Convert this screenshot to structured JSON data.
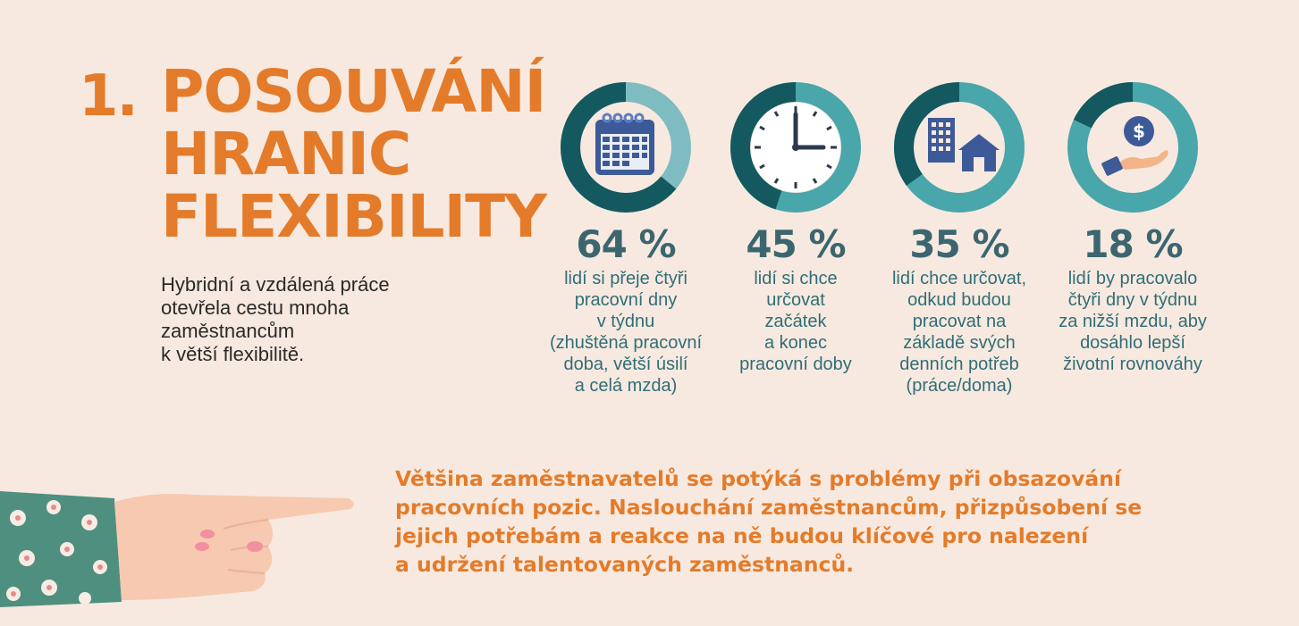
{
  "heading": {
    "number": "1.",
    "title_lines": [
      "POSOUVÁNÍ",
      "HRANIC",
      "FLEXIBILITY"
    ]
  },
  "intro_lines": [
    "Hybridní a vzdálená práce",
    "otevřela cestu mnoha",
    "zaměstnancům",
    "k větší flexibilitě."
  ],
  "chart_data": {
    "type": "pie",
    "unit": "%",
    "values": [
      64,
      45,
      35,
      18
    ],
    "labels": [
      "64 %",
      "45 %",
      "35 %",
      "18 %"
    ],
    "descriptions": [
      [
        "lidí si přeje čtyři",
        "pracovní dny",
        "v týdnu",
        "(zhuštěná pracovní",
        "doba, větší úsilí",
        "a celá mzda)"
      ],
      [
        "lidí si chce",
        "určovat",
        "začátek",
        "a konec",
        "pracovní doby"
      ],
      [
        "lidí chce určovat,",
        "odkud budou",
        "pracovat na",
        "základě svých",
        "denních potřeb",
        "(práce/doma)"
      ],
      [
        "lidí by pracovalo",
        "čtyři dny v týdnu",
        "za nižší mzdu, aby",
        "dosáhlo lepší",
        "životní rovnováhy"
      ]
    ],
    "icons": [
      "calendar-icon",
      "clock-icon",
      "buildings-icon",
      "money-hand-icon"
    ]
  },
  "callout_lines": [
    "Většina zaměstnavatelů se potýká s problémy při obsazování",
    "pracovních pozic. Naslouchání zaměstnancům, přizpůsobení se",
    "jejich potřebám a reakce na ně budou klíčové pro nalezení",
    "a udržení talentovaných zaměstnanců."
  ],
  "colors": {
    "background": "#f7e9df",
    "accent": "#e47b2a",
    "ring_primary": "#14595f",
    "ring_secondary": "#49a6aa",
    "ring_light": "#7fbcc1",
    "icon": "#3d5a98"
  }
}
